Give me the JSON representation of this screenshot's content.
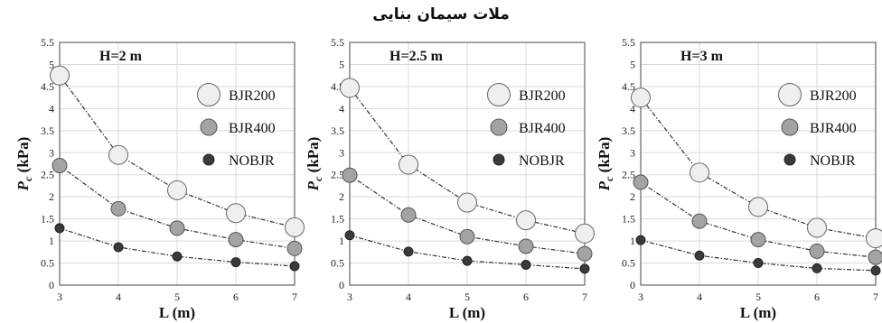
{
  "figure_title": "ملات سیمان بنایی",
  "chart_data": [
    {
      "type": "line",
      "title": "H=2 m",
      "xlabel": "L (m)",
      "ylabel": "Pc (kPa)",
      "ylabel_main": "P",
      "ylabel_sub": "c",
      "ylabel_unit": " (kPa)",
      "x": [
        3,
        4,
        5,
        6,
        7
      ],
      "xlim": [
        3,
        7
      ],
      "ylim": [
        0,
        5.5
      ],
      "xticks": [
        "3",
        "4",
        "5",
        "6",
        "7"
      ],
      "yticks": [
        "0",
        "0.5",
        "1",
        "1.5",
        "2",
        "2.5",
        "3",
        "3.5",
        "4",
        "4.5",
        "5",
        "5.5"
      ],
      "grid": true,
      "legend_position": "top-right",
      "series": [
        {
          "name": "BJR200",
          "values": [
            4.75,
            2.95,
            2.15,
            1.63,
            1.31
          ],
          "color": "#efefef",
          "marker": "large-circle"
        },
        {
          "name": "BJR400",
          "values": [
            2.71,
            1.73,
            1.29,
            1.03,
            0.83
          ],
          "color": "#a3a3a3",
          "marker": "medium-circle"
        },
        {
          "name": "NOBJR",
          "values": [
            1.29,
            0.86,
            0.65,
            0.52,
            0.43
          ],
          "color": "#3a3a3a",
          "marker": "small-circle"
        }
      ]
    },
    {
      "type": "line",
      "title": "H=2.5 m",
      "xlabel": "L (m)",
      "ylabel": "Pc (kPa)",
      "ylabel_main": "P",
      "ylabel_sub": "c",
      "ylabel_unit": " (kPa)",
      "x": [
        3,
        4,
        5,
        6,
        7
      ],
      "xlim": [
        3,
        7
      ],
      "ylim": [
        0,
        5.5
      ],
      "xticks": [
        "3",
        "4",
        "5",
        "6",
        "7"
      ],
      "yticks": [
        "0",
        "0.5",
        "1",
        "1.5",
        "2",
        "2.5",
        "3",
        "3.5",
        "4",
        "4.5",
        "5",
        "5.5"
      ],
      "grid": true,
      "legend_position": "top-right",
      "series": [
        {
          "name": "BJR200",
          "values": [
            4.47,
            2.73,
            1.87,
            1.47,
            1.17
          ],
          "color": "#efefef",
          "marker": "large-circle"
        },
        {
          "name": "BJR400",
          "values": [
            2.49,
            1.59,
            1.1,
            0.88,
            0.71
          ],
          "color": "#a3a3a3",
          "marker": "medium-circle"
        },
        {
          "name": "NOBJR",
          "values": [
            1.13,
            0.76,
            0.55,
            0.46,
            0.37
          ],
          "color": "#3a3a3a",
          "marker": "small-circle"
        }
      ]
    },
    {
      "type": "line",
      "title": "H=3 m",
      "xlabel": "L (m)",
      "ylabel": "Pc (kPa)",
      "ylabel_main": "P",
      "ylabel_sub": "c",
      "ylabel_unit": " (kPa)",
      "x": [
        3,
        4,
        5,
        6,
        7
      ],
      "xlim": [
        3,
        7
      ],
      "ylim": [
        0,
        5.5
      ],
      "xticks": [
        "3",
        "4",
        "5",
        "6",
        "7"
      ],
      "yticks": [
        "0",
        "0.5",
        "1",
        "1.5",
        "2",
        "2.5",
        "3",
        "3.5",
        "4",
        "4.5",
        "5",
        "5.5"
      ],
      "grid": true,
      "legend_position": "top-right",
      "series": [
        {
          "name": "BJR200",
          "values": [
            4.25,
            2.55,
            1.77,
            1.3,
            1.06
          ],
          "color": "#efefef",
          "marker": "large-circle"
        },
        {
          "name": "BJR400",
          "values": [
            2.33,
            1.45,
            1.03,
            0.77,
            0.63
          ],
          "color": "#a3a3a3",
          "marker": "medium-circle"
        },
        {
          "name": "NOBJR",
          "values": [
            1.02,
            0.67,
            0.5,
            0.38,
            0.33
          ],
          "color": "#3a3a3a",
          "marker": "small-circle"
        }
      ]
    }
  ]
}
